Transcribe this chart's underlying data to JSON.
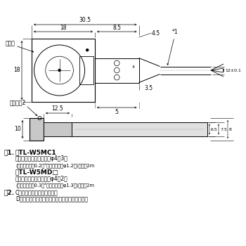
{
  "bg_color": "#ffffff",
  "lc": "#000000",
  "gray_fill": "#c8c8c8",
  "light_gray": "#e0e0e0",
  "fs": 5.5,
  "fm": 6.5,
  "note1_title": "形TL-W5MC1",
  "note1_line1": "ビニル絶縁丸形コード　φ4、3芯",
  "note1_line2": "(導体断面積：0.2㎜²、絶縁体径：φ1.2㎜)　標準2m",
  "note1_title2": "形TL-W5MD□",
  "note1_line3": "ビニル絶縁丸形コード　φ4、2芯",
  "note1_line4": "(導体断面積：0.3㎜²、絶縁体径：φ1.3㎜)　標準2m",
  "note2_c": "Cタイプ：検出表示灯（赤）",
  "note2_d": "Dタイプ：動作表示灯（赤）、設定表示灯（緑）",
  "label_kenmen": "検出面",
  "label_hyojito": "表示灯＊2",
  "dim_30_5": "30.5",
  "dim_8_5": "8.5",
  "dim_18h": "18",
  "dim_18v": "18",
  "dim_4_5": "4.5",
  "dim_4": "4",
  "dim_3_5": "3.5",
  "dim_5": "5",
  "dim_12": "12±0.1",
  "dim_12_5": "12.5",
  "dim_10": "10",
  "dim_6_5": "6.5",
  "dim_7_5": "7.5",
  "dim_8": "8",
  "star1": "*1",
  "star1_dot": "＊1.",
  "star2_dot": "＊2."
}
